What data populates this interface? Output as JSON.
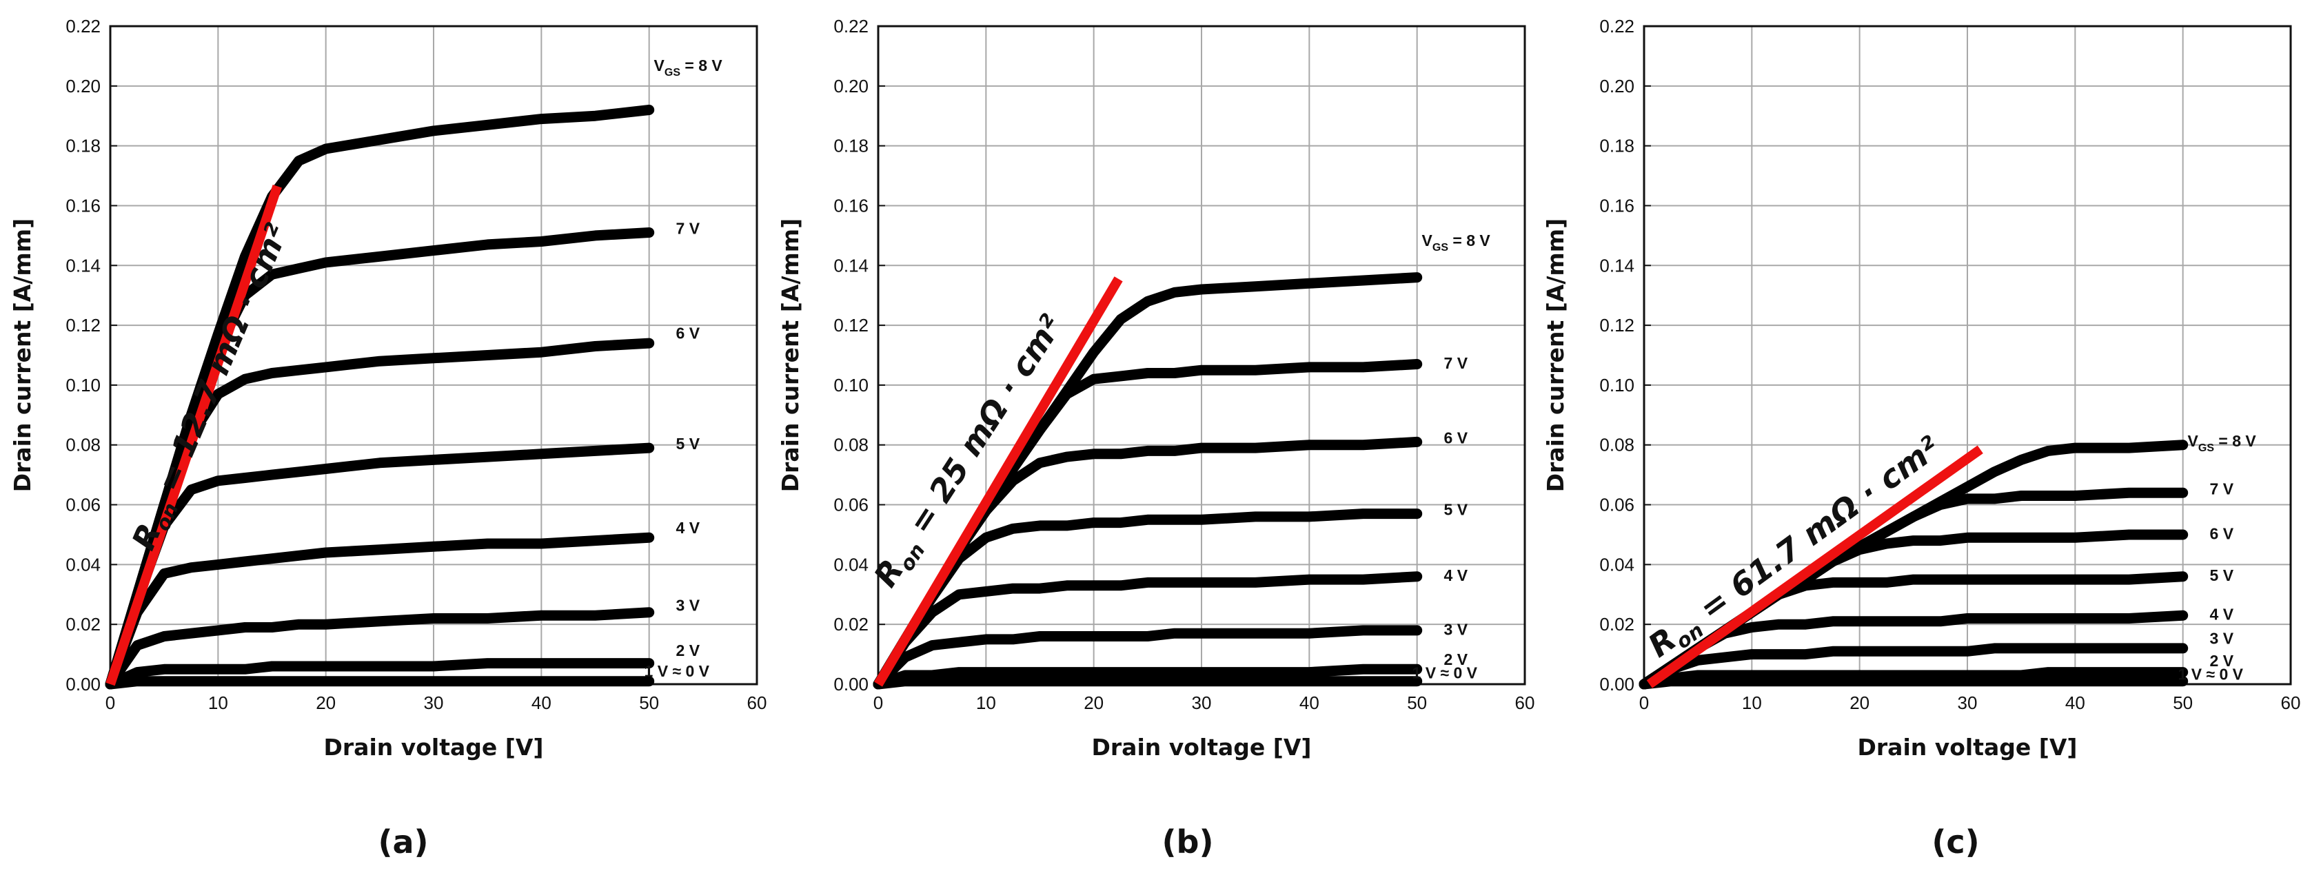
{
  "chart_data": [
    {
      "type": "line",
      "panel_label": "(a)",
      "xlabel": "Drain voltage [V]",
      "ylabel": "Drain current [A/mm]",
      "xlim": [
        0,
        60
      ],
      "ylim": [
        0,
        0.22
      ],
      "xticks": [
        "0",
        "10",
        "20",
        "30",
        "40",
        "50",
        "60"
      ],
      "yticks": [
        "0.00",
        "0.02",
        "0.04",
        "0.06",
        "0.08",
        "0.10",
        "0.12",
        "0.14",
        "0.16",
        "0.18",
        "0.20",
        "0.22"
      ],
      "grid": true,
      "x": [
        0,
        2.5,
        5,
        7.5,
        10,
        12.5,
        15,
        17.5,
        20,
        25,
        30,
        35,
        40,
        45,
        50
      ],
      "series": [
        {
          "name": "VGS = 8 V",
          "label_main": "V",
          "label_sub": "GS",
          "label_rest": " = 8 V",
          "values": [
            0,
            0.03,
            0.06,
            0.09,
            0.117,
            0.143,
            0.163,
            0.175,
            0.179,
            0.182,
            0.185,
            0.187,
            0.189,
            0.19,
            0.192
          ]
        },
        {
          "name": "7 V",
          "values": [
            0,
            0.03,
            0.06,
            0.088,
            0.112,
            0.13,
            0.137,
            0.139,
            0.141,
            0.143,
            0.145,
            0.147,
            0.148,
            0.15,
            0.151
          ]
        },
        {
          "name": "6 V",
          "values": [
            0,
            0.029,
            0.058,
            0.083,
            0.097,
            0.102,
            0.104,
            0.105,
            0.106,
            0.108,
            0.109,
            0.11,
            0.111,
            0.113,
            0.114
          ]
        },
        {
          "name": "5 V",
          "values": [
            0,
            0.028,
            0.053,
            0.065,
            0.068,
            0.069,
            0.07,
            0.071,
            0.072,
            0.074,
            0.075,
            0.076,
            0.077,
            0.078,
            0.079
          ]
        },
        {
          "name": "4 V",
          "values": [
            0,
            0.024,
            0.037,
            0.039,
            0.04,
            0.041,
            0.042,
            0.043,
            0.044,
            0.045,
            0.046,
            0.047,
            0.047,
            0.048,
            0.049
          ]
        },
        {
          "name": "3 V",
          "values": [
            0,
            0.013,
            0.016,
            0.017,
            0.018,
            0.019,
            0.019,
            0.02,
            0.02,
            0.021,
            0.022,
            0.022,
            0.023,
            0.023,
            0.024
          ]
        },
        {
          "name": "2 V",
          "values": [
            0,
            0.004,
            0.005,
            0.005,
            0.005,
            0.005,
            0.006,
            0.006,
            0.006,
            0.006,
            0.006,
            0.007,
            0.007,
            0.007,
            0.007
          ]
        },
        {
          "name": "1 V ≈ 0 V",
          "values": [
            0,
            0.001,
            0.001,
            0.001,
            0.001,
            0.001,
            0.001,
            0.001,
            0.001,
            0.001,
            0.001,
            0.001,
            0.001,
            0.001,
            0.001
          ]
        }
      ],
      "label_y": [
        0.205,
        0.1505,
        0.1155,
        0.0785,
        0.0505,
        0.0245,
        0.0095,
        0.0025
      ],
      "fit_line": {
        "x": [
          0,
          15.5
        ],
        "y": [
          0.0,
          0.1665
        ],
        "color": "#ee1111"
      },
      "annotation": {
        "prefix": "R",
        "subscript": "on",
        "value": " = 12.7 mΩ · cm²",
        "font_size": 46
      }
    },
    {
      "type": "line",
      "panel_label": "(b)",
      "xlabel": "Drain voltage [V]",
      "ylabel": "Drain current [A/mm]",
      "xlim": [
        0,
        60
      ],
      "ylim": [
        0,
        0.22
      ],
      "xticks": [
        "0",
        "10",
        "20",
        "30",
        "40",
        "50",
        "60"
      ],
      "yticks": [
        "0.00",
        "0.02",
        "0.04",
        "0.06",
        "0.08",
        "0.10",
        "0.12",
        "0.14",
        "0.16",
        "0.18",
        "0.20",
        "0.22"
      ],
      "grid": true,
      "x": [
        0,
        2.5,
        5,
        7.5,
        10,
        12.5,
        15,
        17.5,
        20,
        22.5,
        25,
        27.5,
        30,
        35,
        40,
        45,
        50
      ],
      "series": [
        {
          "name": "VGS = 8 V",
          "label_main": "V",
          "label_sub": "GS",
          "label_rest": " = 8 V",
          "values": [
            0,
            0.015,
            0.03,
            0.045,
            0.058,
            0.072,
            0.085,
            0.098,
            0.111,
            0.122,
            0.128,
            0.131,
            0.132,
            0.133,
            0.134,
            0.135,
            0.136
          ]
        },
        {
          "name": "7 V",
          "values": [
            0,
            0.015,
            0.03,
            0.045,
            0.058,
            0.072,
            0.085,
            0.097,
            0.102,
            0.103,
            0.104,
            0.104,
            0.105,
            0.105,
            0.106,
            0.106,
            0.107
          ]
        },
        {
          "name": "6 V",
          "values": [
            0,
            0.015,
            0.03,
            0.045,
            0.058,
            0.068,
            0.074,
            0.076,
            0.077,
            0.077,
            0.078,
            0.078,
            0.079,
            0.079,
            0.08,
            0.08,
            0.081
          ]
        },
        {
          "name": "5 V",
          "values": [
            0,
            0.015,
            0.029,
            0.042,
            0.049,
            0.052,
            0.053,
            0.053,
            0.054,
            0.054,
            0.055,
            0.055,
            0.055,
            0.056,
            0.056,
            0.057,
            0.057
          ]
        },
        {
          "name": "4 V",
          "values": [
            0,
            0.014,
            0.024,
            0.03,
            0.031,
            0.032,
            0.032,
            0.033,
            0.033,
            0.033,
            0.034,
            0.034,
            0.034,
            0.034,
            0.035,
            0.035,
            0.036
          ]
        },
        {
          "name": "3 V",
          "values": [
            0,
            0.009,
            0.013,
            0.014,
            0.015,
            0.015,
            0.016,
            0.016,
            0.016,
            0.016,
            0.016,
            0.017,
            0.017,
            0.017,
            0.017,
            0.018,
            0.018
          ]
        },
        {
          "name": "2 V",
          "values": [
            0,
            0.003,
            0.003,
            0.004,
            0.004,
            0.004,
            0.004,
            0.004,
            0.004,
            0.004,
            0.004,
            0.004,
            0.004,
            0.004,
            0.004,
            0.005,
            0.005
          ]
        },
        {
          "name": "1 V ≈ 0 V",
          "values": [
            0,
            0.001,
            0.001,
            0.001,
            0.001,
            0.001,
            0.001,
            0.001,
            0.001,
            0.001,
            0.001,
            0.001,
            0.001,
            0.001,
            0.001,
            0.001,
            0.001
          ]
        }
      ],
      "label_y": [
        0.1465,
        0.1055,
        0.0805,
        0.0565,
        0.0345,
        0.0165,
        0.0065,
        0.002
      ],
      "fit_line": {
        "x": [
          0,
          22.3
        ],
        "y": [
          0.0,
          0.1355
        ],
        "color": "#ee1111"
      },
      "annotation": {
        "prefix": "R",
        "subscript": "on",
        "value": " = 25 mΩ · cm²",
        "font_size": 46
      }
    },
    {
      "type": "line",
      "panel_label": "(c)",
      "xlabel": "Drain voltage [V]",
      "ylabel": "Drain current [A/mm]",
      "xlim": [
        0,
        60
      ],
      "ylim": [
        0,
        0.22
      ],
      "xticks": [
        "0",
        "10",
        "20",
        "30",
        "40",
        "50",
        "60"
      ],
      "yticks": [
        "0.00",
        "0.02",
        "0.04",
        "0.06",
        "0.08",
        "0.10",
        "0.12",
        "0.14",
        "0.16",
        "0.18",
        "0.20",
        "0.22"
      ],
      "grid": true,
      "x": [
        0,
        2.5,
        5,
        7.5,
        10,
        12.5,
        15,
        17.5,
        20,
        22.5,
        25,
        27.5,
        30,
        32.5,
        35,
        37.5,
        40,
        45,
        50
      ],
      "series": [
        {
          "name": "VGS = 8 V",
          "label_main": "V",
          "label_sub": "GS",
          "label_rest": " = 8 V",
          "values": [
            0,
            0.006,
            0.012,
            0.018,
            0.024,
            0.03,
            0.035,
            0.041,
            0.046,
            0.051,
            0.056,
            0.061,
            0.066,
            0.071,
            0.075,
            0.078,
            0.079,
            0.079,
            0.08
          ]
        },
        {
          "name": "7 V",
          "values": [
            0,
            0.006,
            0.012,
            0.018,
            0.024,
            0.03,
            0.035,
            0.041,
            0.046,
            0.051,
            0.056,
            0.06,
            0.062,
            0.062,
            0.063,
            0.063,
            0.063,
            0.064,
            0.064
          ]
        },
        {
          "name": "6 V",
          "values": [
            0,
            0.006,
            0.012,
            0.018,
            0.024,
            0.03,
            0.035,
            0.041,
            0.045,
            0.047,
            0.048,
            0.048,
            0.049,
            0.049,
            0.049,
            0.049,
            0.049,
            0.05,
            0.05
          ]
        },
        {
          "name": "5 V",
          "values": [
            0,
            0.006,
            0.012,
            0.018,
            0.024,
            0.03,
            0.033,
            0.034,
            0.034,
            0.034,
            0.035,
            0.035,
            0.035,
            0.035,
            0.035,
            0.035,
            0.035,
            0.035,
            0.036
          ]
        },
        {
          "name": "4 V",
          "values": [
            0,
            0.006,
            0.012,
            0.017,
            0.019,
            0.02,
            0.02,
            0.021,
            0.021,
            0.021,
            0.021,
            0.021,
            0.022,
            0.022,
            0.022,
            0.022,
            0.022,
            0.022,
            0.023
          ]
        },
        {
          "name": "3 V",
          "values": [
            0,
            0.005,
            0.008,
            0.009,
            0.01,
            0.01,
            0.01,
            0.011,
            0.011,
            0.011,
            0.011,
            0.011,
            0.011,
            0.012,
            0.012,
            0.012,
            0.012,
            0.012,
            0.012
          ]
        },
        {
          "name": "2 V",
          "values": [
            0,
            0.002,
            0.003,
            0.003,
            0.003,
            0.003,
            0.003,
            0.003,
            0.003,
            0.003,
            0.003,
            0.003,
            0.003,
            0.003,
            0.003,
            0.004,
            0.004,
            0.004,
            0.004
          ]
        },
        {
          "name": "1 V ≈ 0 V",
          "values": [
            0,
            0.001,
            0.001,
            0.001,
            0.001,
            0.001,
            0.001,
            0.001,
            0.001,
            0.001,
            0.001,
            0.001,
            0.001,
            0.001,
            0.001,
            0.001,
            0.001,
            0.001,
            0.001
          ]
        }
      ],
      "label_y": [
        0.0795,
        0.0635,
        0.0485,
        0.0345,
        0.0215,
        0.0135,
        0.006,
        0.0015
      ],
      "fit_line": {
        "x": [
          0.5,
          31.2
        ],
        "y": [
          0.0,
          0.0785
        ],
        "color": "#ee1111"
      },
      "annotation": {
        "prefix": "R",
        "subscript": "on",
        "value": " = 61.7 mΩ · cm²",
        "font_size": 46
      }
    }
  ]
}
